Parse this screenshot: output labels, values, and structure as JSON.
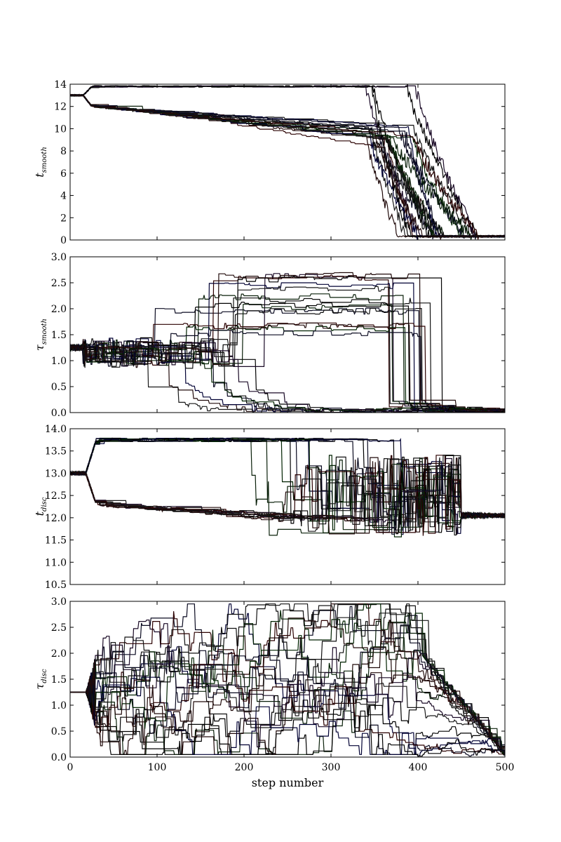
{
  "chart_data": [
    {
      "type": "line",
      "title": "",
      "xlabel": "",
      "ylabel": {
        "symbol": "t",
        "subscript": "smooth"
      },
      "xlim": [
        0,
        500
      ],
      "ylim": [
        0,
        14
      ],
      "xticks": [
        "0",
        "100",
        "200",
        "300",
        "400",
        "500"
      ],
      "yticks": [
        "0",
        "2",
        "4",
        "6",
        "8",
        "10",
        "12",
        "14"
      ],
      "grid": false,
      "legend": "none",
      "walkers": 24,
      "initial_value": 13.0,
      "behavior": "walkers split to ~13.8 and ~12.0 near step 20, slowly drift to ~9.5 by step 350, then collapse to ~0.3 between steps 350 and 450"
    },
    {
      "type": "line",
      "title": "",
      "xlabel": "",
      "ylabel": {
        "symbol": "τ",
        "subscript": "smooth"
      },
      "xlim": [
        0,
        500
      ],
      "ylim": [
        0,
        3.0
      ],
      "xticks": [
        "0",
        "100",
        "200",
        "300",
        "400",
        "500"
      ],
      "yticks": [
        "0.0",
        "0.5",
        "1.0",
        "1.5",
        "2.0",
        "2.5",
        "3.0"
      ],
      "grid": false,
      "legend": "none",
      "walkers": 24,
      "initial_value": 1.25,
      "behavior": "walkers spread around 1.0–1.5 until ~step 80, some climb to 1.5–2.85 and stay until ~step 360–400, others decay to ~0.05; all converge near 0.03 by step 500"
    },
    {
      "type": "line",
      "title": "",
      "xlabel": "",
      "ylabel": {
        "symbol": "t",
        "subscript": "disc"
      },
      "xlim": [
        0,
        500
      ],
      "ylim": [
        10.5,
        14.0
      ],
      "xticks": [
        "0",
        "100",
        "200",
        "300",
        "400",
        "500"
      ],
      "yticks": [
        "10.5",
        "11.0",
        "11.5",
        "12.0",
        "12.5",
        "13.0",
        "13.5",
        "14.0"
      ],
      "grid": false,
      "legend": "none",
      "walkers": 24,
      "initial_value": 13.0,
      "behavior": "walkers split to ~13.75 and ~12.3 near step 25, wander between 11.5 and 13.8, then converge toward ~12.05 by step 500"
    },
    {
      "type": "line",
      "title": "",
      "xlabel": "step number",
      "ylabel": {
        "symbol": "τ",
        "subscript": "disc"
      },
      "xlim": [
        0,
        500
      ],
      "ylim": [
        0,
        3.0
      ],
      "xticks": [
        "0",
        "100",
        "200",
        "300",
        "400",
        "500"
      ],
      "yticks": [
        "0.0",
        "0.5",
        "1.0",
        "1.5",
        "2.0",
        "2.5",
        "3.0"
      ],
      "grid": false,
      "legend": "none",
      "walkers": 24,
      "initial_value": 1.25,
      "behavior": "walkers spread widely between 0.0 and 2.95 from step 25 to ~400, then decay toward ~0.05 by step 500"
    }
  ],
  "colors": {
    "walker_palette": [
      "#000000",
      "#111111",
      "#0a0a20",
      "#200a0a",
      "#0a200a",
      "#1a0a26",
      "#000033",
      "#2a0000",
      "#002200",
      "#1a1a1a"
    ],
    "frame": "#000000"
  }
}
